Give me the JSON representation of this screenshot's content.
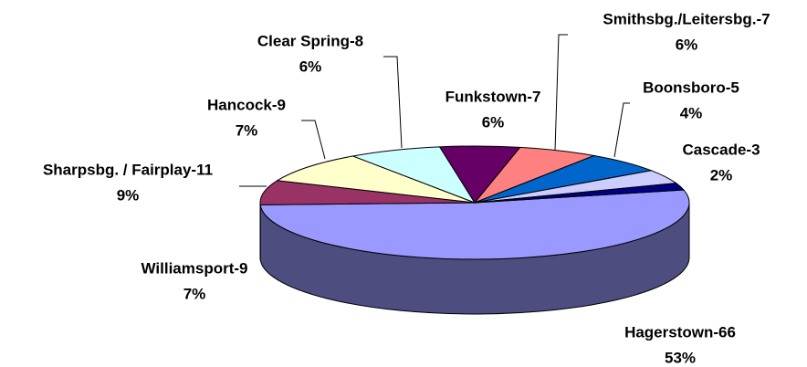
{
  "chart_data": {
    "type": "pie3d",
    "categories": [
      "Hagerstown-66",
      "Williamsport-9",
      "Sharpsbg. / Fairplay-11",
      "Hancock-9",
      "Clear Spring-8",
      "Funkstown-7",
      "Smithsbg./Leitersbg.-7",
      "Boonsboro-5",
      "Cascade-3"
    ],
    "values": [
      53,
      7,
      9,
      7,
      6,
      6,
      6,
      4,
      2
    ],
    "value_labels": [
      "53%",
      "7%",
      "9%",
      "7%",
      "6%",
      "6%",
      "6%",
      "4%",
      "2%"
    ],
    "colors": [
      "#9999ff",
      "#993366",
      "#ffffcc",
      "#ccffff",
      "#660066",
      "#ff8080",
      "#0066cc",
      "#ccccff",
      "#000080"
    ]
  }
}
